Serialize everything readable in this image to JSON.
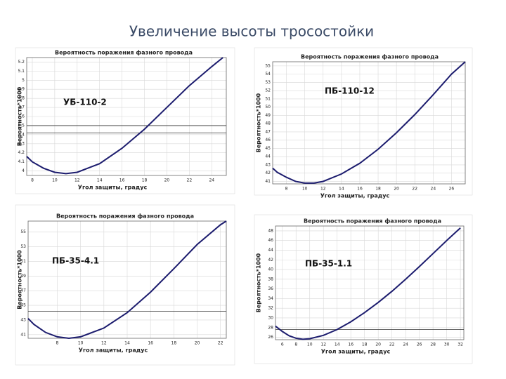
{
  "title": "Увеличение высоты тросостойки",
  "chart_data": [
    {
      "type": "line",
      "title": "Вероятность поражения фазного провода",
      "annotation": "УБ-110-2",
      "x_label": "Угол защиты, градус",
      "y_label": "Вероятность*1000",
      "grid": true,
      "x": [
        7.5,
        8,
        9,
        10,
        11,
        12,
        14,
        16,
        18,
        20,
        22,
        24,
        25
      ],
      "series": [
        {
          "color": "#1c1c6e",
          "values": [
            4.16,
            4.1,
            4.03,
            3.985,
            3.97,
            3.985,
            4.08,
            4.25,
            4.46,
            4.7,
            4.94,
            5.15,
            5.25
          ]
        }
      ],
      "reference_lines": [
        4.5,
        4.42
      ],
      "reference_color": "#333333",
      "xlim": [
        7.5,
        25.3
      ],
      "xticks": [
        8,
        10,
        12,
        14,
        16,
        18,
        20,
        22,
        24
      ],
      "ylim": [
        3.95,
        5.25
      ],
      "yticks": [
        4,
        4.1,
        4.2,
        4.3,
        4.4,
        4.5,
        4.6,
        4.7,
        4.8,
        4.9,
        5,
        5.1,
        5.2
      ]
    },
    {
      "type": "line",
      "title": "Вероятность поражения фазного провода",
      "annotation": "ПБ-110-12",
      "x_label": "Угол защиты, градус",
      "y_label": "Вероятность*1000",
      "grid": true,
      "x": [
        6.5,
        7,
        8,
        9,
        10,
        11,
        12,
        14,
        16,
        18,
        20,
        22,
        24,
        26,
        27.5
      ],
      "series": [
        {
          "color": "#1c1c6e",
          "values": [
            42.6,
            42.1,
            41.5,
            41.0,
            40.8,
            40.8,
            41.0,
            41.9,
            43.2,
            44.9,
            46.9,
            49.1,
            51.5,
            54.0,
            55.5
          ]
        }
      ],
      "reference_lines": [],
      "reference_color": "#333333",
      "xlim": [
        6.5,
        27.5
      ],
      "xticks": [
        8,
        10,
        12,
        14,
        16,
        18,
        20,
        22,
        24,
        26
      ],
      "ylim": [
        40.7,
        55.5
      ],
      "yticks": [
        41,
        42,
        43,
        44,
        45,
        46,
        47,
        48,
        49,
        50,
        51,
        52,
        53,
        54,
        55
      ]
    },
    {
      "type": "line",
      "title": "Вероятность поражения фазного провода",
      "annotation": "ПБ-35-4.1",
      "x_label": "Угол защиты, градус",
      "y_label": "Вероятность*1000",
      "grid": true,
      "x": [
        5.5,
        6,
        7,
        8,
        9,
        10,
        12,
        14,
        16,
        18,
        20,
        22,
        22.5
      ],
      "series": [
        {
          "color": "#1c1c6e",
          "values": [
            43.2,
            42.4,
            41.3,
            40.7,
            40.5,
            40.7,
            41.9,
            44.0,
            46.8,
            50.0,
            53.3,
            56.0,
            56.5
          ]
        }
      ],
      "reference_lines": [
        44.2
      ],
      "reference_color": "#333333",
      "xlim": [
        5.5,
        22.5
      ],
      "xticks": [
        8,
        10,
        12,
        14,
        16,
        18,
        20,
        22
      ],
      "ylim": [
        40.5,
        56.5
      ],
      "yticks": [
        41,
        43,
        45,
        47,
        49,
        51,
        53,
        55
      ]
    },
    {
      "type": "line",
      "title": "Вероятность поражения фазного провода",
      "annotation": "ПБ-35-1.1",
      "x_label": "Угол защиты, градус",
      "y_label": "Вероятность*1000",
      "grid": true,
      "x": [
        5,
        6,
        7,
        8,
        9,
        10,
        12,
        14,
        16,
        18,
        20,
        22,
        24,
        26,
        28,
        30,
        32
      ],
      "series": [
        {
          "color": "#1c1c6e",
          "values": [
            28.3,
            27.2,
            26.3,
            25.8,
            25.6,
            25.7,
            26.4,
            27.6,
            29.2,
            31.1,
            33.2,
            35.5,
            38.0,
            40.6,
            43.3,
            46.0,
            48.6
          ]
        }
      ],
      "reference_lines": [
        27.6
      ],
      "reference_color": "#333333",
      "xlim": [
        5,
        32.5
      ],
      "xticks": [
        6,
        8,
        10,
        12,
        14,
        16,
        18,
        20,
        22,
        24,
        26,
        28,
        30,
        32
      ],
      "ylim": [
        25.5,
        49
      ],
      "yticks": [
        26,
        28,
        30,
        32,
        34,
        36,
        38,
        40,
        42,
        44,
        46,
        48
      ]
    }
  ]
}
